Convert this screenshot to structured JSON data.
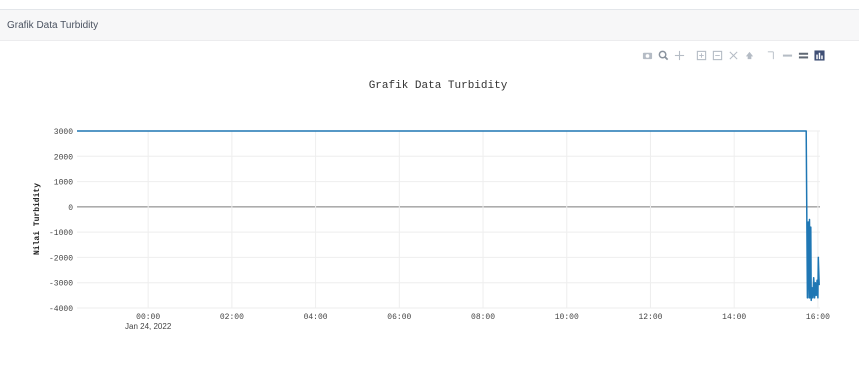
{
  "card": {
    "title": "Grafik Data Turbidity"
  },
  "modebar": {
    "buttons": [
      {
        "icon": "camera-icon",
        "label": "Download plot as a png"
      },
      {
        "icon": "zoom-icon",
        "label": "Zoom"
      },
      {
        "icon": "pan-icon",
        "label": "Pan"
      },
      {
        "icon": "zoom-in-icon",
        "label": "Zoom in"
      },
      {
        "icon": "zoom-out-icon",
        "label": "Zoom out"
      },
      {
        "icon": "autoscale-icon",
        "label": "Autoscale"
      },
      {
        "icon": "reset-axes-icon",
        "label": "Reset axes"
      },
      {
        "icon": "spike-lines-icon",
        "label": "Toggle Spike Lines"
      },
      {
        "icon": "hover-closest-icon",
        "label": "Show closest data on hover"
      },
      {
        "icon": "hover-compare-icon",
        "label": "Compare data on hover"
      },
      {
        "icon": "plotly-logo-icon",
        "label": "Produced with Plotly"
      }
    ]
  },
  "chart_data": {
    "type": "line",
    "title": "Grafik Data Turbidity",
    "xlabel": "",
    "ylabel": "Nilai Turbidity",
    "x_ticks": [
      "00:00",
      "02:00",
      "04:00",
      "06:00",
      "08:00",
      "10:00",
      "12:00",
      "14:00",
      "16:00"
    ],
    "x_tick_sublabel": "Jan 24, 2022",
    "y_ticks": [
      "3000",
      "2000",
      "1000",
      "0",
      "-1000",
      "-2000",
      "-3000",
      "-4000"
    ],
    "ylim": [
      -4000,
      3000
    ],
    "xlim_hours": [
      -1.7,
      16.05
    ],
    "grid": true,
    "line_color": "#1f77b4",
    "series": [
      {
        "x_hours": [
          -1.7,
          15.72,
          15.75,
          15.77,
          15.79,
          15.8,
          15.81,
          15.83,
          15.84,
          15.86,
          15.88,
          15.9,
          15.92,
          15.94,
          15.96,
          15.98,
          16.0,
          16.01,
          16.03
        ],
        "y": [
          3000,
          3000,
          -3600,
          -600,
          -3600,
          -500,
          -3600,
          -800,
          -3700,
          -3200,
          -3600,
          -2800,
          -3600,
          -3000,
          -3500,
          -2900,
          -3600,
          -2000,
          -3100
        ]
      }
    ]
  }
}
